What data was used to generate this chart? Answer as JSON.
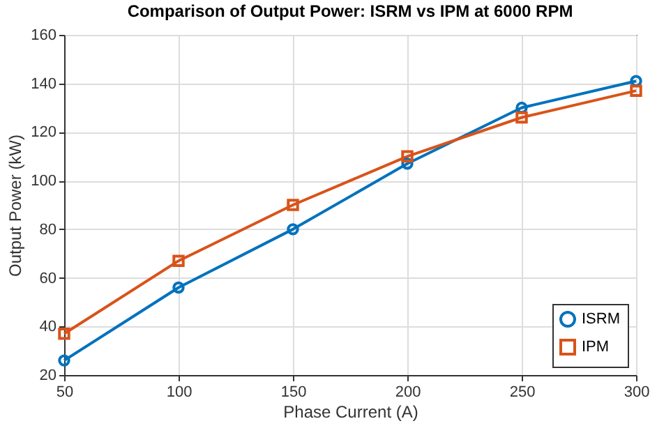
{
  "chart_data": {
    "type": "line",
    "title": "Comparison of Output Power: ISRM vs IPM at 6000 RPM",
    "xlabel": "Phase Current (A)",
    "ylabel": "Output Power (kW)",
    "x": [
      50,
      100,
      150,
      200,
      250,
      300
    ],
    "series": [
      {
        "name": "ISRM",
        "color": "#0072bd",
        "marker": "circle",
        "values": [
          26,
          56,
          80,
          107,
          130,
          141
        ]
      },
      {
        "name": "IPM",
        "color": "#d95319",
        "marker": "square",
        "values": [
          37,
          67,
          90,
          110,
          126,
          137
        ]
      }
    ],
    "xlim": [
      50,
      300
    ],
    "xticks": [
      50,
      100,
      150,
      200,
      250,
      300
    ],
    "ylim": [
      20,
      160
    ],
    "yticks": [
      20,
      40,
      60,
      80,
      100,
      120,
      140,
      160
    ],
    "grid": true,
    "legend": "bottom right",
    "line_style": "solid"
  }
}
